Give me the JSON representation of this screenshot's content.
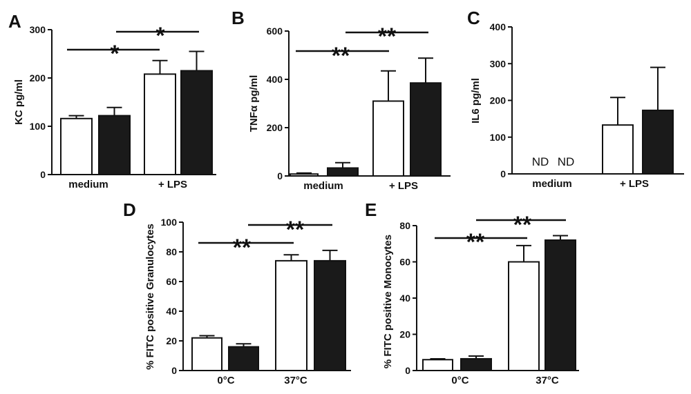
{
  "chart_data": [
    {
      "panel": "A",
      "type": "bar",
      "ylabel": "KC pg/ml",
      "ylim": [
        0,
        300
      ],
      "yticks": [
        0,
        100,
        200,
        300
      ],
      "categories": [
        "medium",
        "+ LPS"
      ],
      "series": [
        {
          "fill": "white",
          "values": [
            116,
            208
          ],
          "errors": [
            6,
            28
          ]
        },
        {
          "fill": "black",
          "values": [
            122,
            215
          ],
          "errors": [
            17,
            40
          ]
        }
      ],
      "significance": [
        {
          "label": "*"
        },
        {
          "label": "*"
        }
      ],
      "annotations": [],
      "grid": false
    },
    {
      "panel": "B",
      "type": "bar",
      "ylabel": "TNFα pg/ml",
      "ylim": [
        0,
        600
      ],
      "yticks": [
        0,
        200,
        400,
        600
      ],
      "categories": [
        "medium",
        "+ LPS"
      ],
      "series": [
        {
          "fill": "white",
          "values": [
            8,
            310
          ],
          "errors": [
            4,
            125
          ]
        },
        {
          "fill": "black",
          "values": [
            33,
            385
          ],
          "errors": [
            22,
            103
          ]
        }
      ],
      "significance": [
        {
          "label": "**"
        },
        {
          "label": "**"
        }
      ],
      "annotations": [],
      "grid": false
    },
    {
      "panel": "C",
      "type": "bar",
      "ylabel": "IL6 pg/ml",
      "ylim": [
        0,
        400
      ],
      "yticks": [
        0,
        100,
        200,
        300,
        400
      ],
      "categories": [
        "medium",
        "+ LPS"
      ],
      "series": [
        {
          "fill": "white",
          "values": [
            null,
            133
          ],
          "errors": [
            null,
            75
          ]
        },
        {
          "fill": "black",
          "values": [
            null,
            173
          ],
          "errors": [
            null,
            117
          ]
        }
      ],
      "significance": [],
      "annotations": [
        "ND",
        "ND"
      ],
      "grid": false
    },
    {
      "panel": "D",
      "type": "bar",
      "ylabel": "% FITC positive Granulocytes",
      "ylim": [
        0,
        100
      ],
      "yticks": [
        0,
        20,
        40,
        60,
        80,
        100
      ],
      "categories": [
        "0°C",
        "37°C"
      ],
      "series": [
        {
          "fill": "white",
          "values": [
            22,
            74
          ],
          "errors": [
            1.5,
            4
          ]
        },
        {
          "fill": "black",
          "values": [
            16,
            74
          ],
          "errors": [
            2,
            7
          ]
        }
      ],
      "significance": [
        {
          "label": "**"
        },
        {
          "label": "**"
        }
      ],
      "annotations": [],
      "grid": false
    },
    {
      "panel": "E",
      "type": "bar",
      "ylabel": "% FITC positive Monocytes",
      "ylim": [
        0,
        80
      ],
      "yticks": [
        0,
        20,
        40,
        60,
        80
      ],
      "categories": [
        "0°C",
        "37°C"
      ],
      "series": [
        {
          "fill": "white",
          "values": [
            6,
            60
          ],
          "errors": [
            0.5,
            9
          ]
        },
        {
          "fill": "black",
          "values": [
            6.5,
            72
          ],
          "errors": [
            1.5,
            2.5
          ]
        }
      ],
      "significance": [
        {
          "label": "**"
        },
        {
          "label": "**"
        }
      ],
      "annotations": [],
      "grid": false
    }
  ]
}
